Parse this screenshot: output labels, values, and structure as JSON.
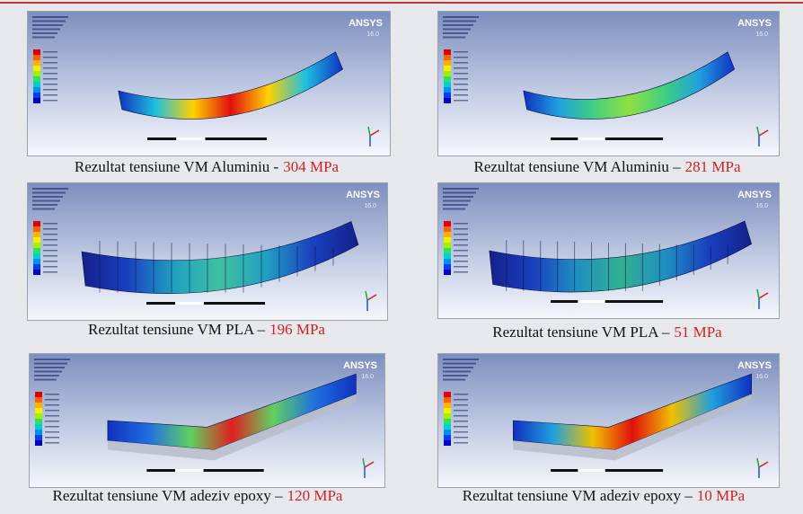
{
  "panels": [
    {
      "logo": "ANSYS",
      "version": "16.0",
      "caption": "Rezultat tensiune VM Aluminiu -",
      "result": "304 MPa"
    },
    {
      "logo": "ANSYS",
      "version": "16.0",
      "caption": "Rezultat tensiune VM Aluminiu –",
      "result": "281 MPa"
    },
    {
      "logo": "ANSYS",
      "version": "16.0",
      "caption": "Rezultat tensiune VM PLA –",
      "result": "196 MPa"
    },
    {
      "logo": "ANSYS",
      "version": "16.0",
      "caption": "Rezultat tensiune VM PLA –",
      "result": "51 MPa"
    },
    {
      "logo": "ANSYS",
      "version": "16.0",
      "caption": "Rezultat tensiune VM adeziv epoxy –",
      "result": "120 MPa"
    },
    {
      "logo": "ANSYS",
      "version": "16.0",
      "caption": "Rezultat tensiune VM adeziv epoxy –",
      "result": "10 MPa"
    }
  ]
}
